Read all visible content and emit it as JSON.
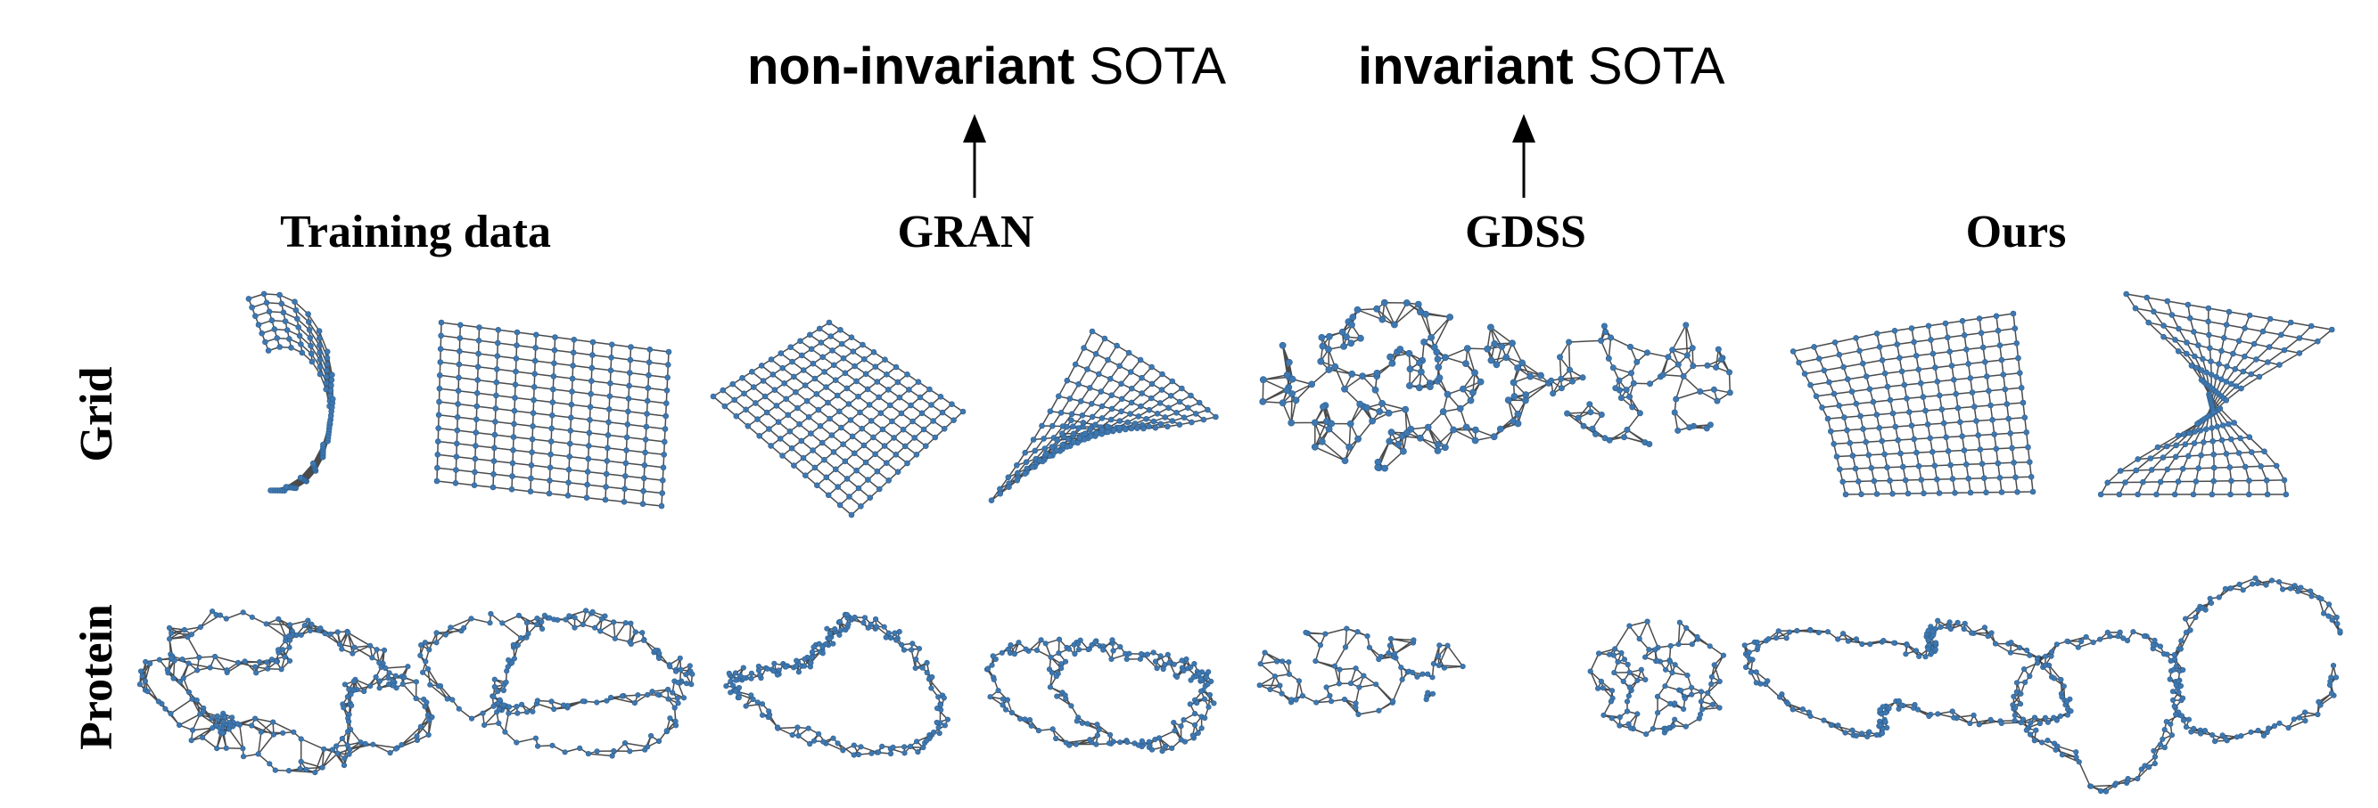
{
  "top_labels": [
    {
      "bold": "non-invariant",
      "rest": " SOTA"
    },
    {
      "bold": "invariant",
      "rest": " SOTA"
    }
  ],
  "columns": [
    "Training data",
    "GRAN",
    "GDSS",
    "Ours"
  ],
  "rows": [
    "Grid",
    "Protein"
  ],
  "colors": {
    "node": "#3f78b0",
    "edge": "#2b2b2b",
    "text": "#000000"
  }
}
